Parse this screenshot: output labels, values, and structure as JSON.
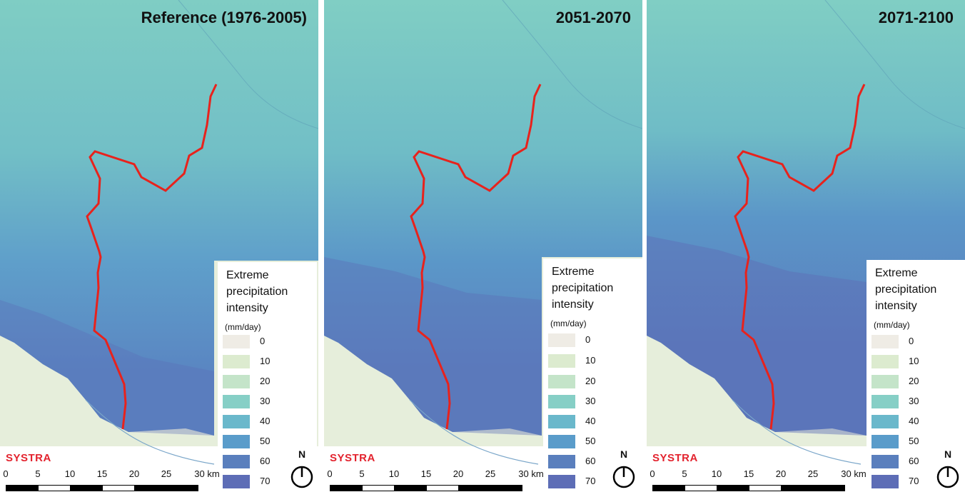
{
  "panels": [
    {
      "title": "Reference (1976-2005)"
    },
    {
      "title": "2051-2070"
    },
    {
      "title": "2071-2100"
    }
  ],
  "legend": {
    "title": "Extreme precipitation intensity",
    "unit": "(mm/day)",
    "classes": [
      {
        "label": "0",
        "color": "#efece5"
      },
      {
        "label": "10",
        "color": "#dcebcf"
      },
      {
        "label": "20",
        "color": "#c4e4c9"
      },
      {
        "label": "30",
        "color": "#86cfc6"
      },
      {
        "label": "40",
        "color": "#6ab8cb"
      },
      {
        "label": "50",
        "color": "#5a9cca"
      },
      {
        "label": "60",
        "color": "#5a7fbd"
      },
      {
        "label": "70",
        "color": "#5d6db6"
      }
    ]
  },
  "brand": "SYSTRA",
  "north_arrow": {
    "label": "N"
  },
  "scale_bar": {
    "ticks": [
      "0",
      "5",
      "10",
      "15",
      "20",
      "25",
      "30 km"
    ]
  },
  "colors": {
    "route": "#e8221c",
    "land": "#e6eedb"
  }
}
